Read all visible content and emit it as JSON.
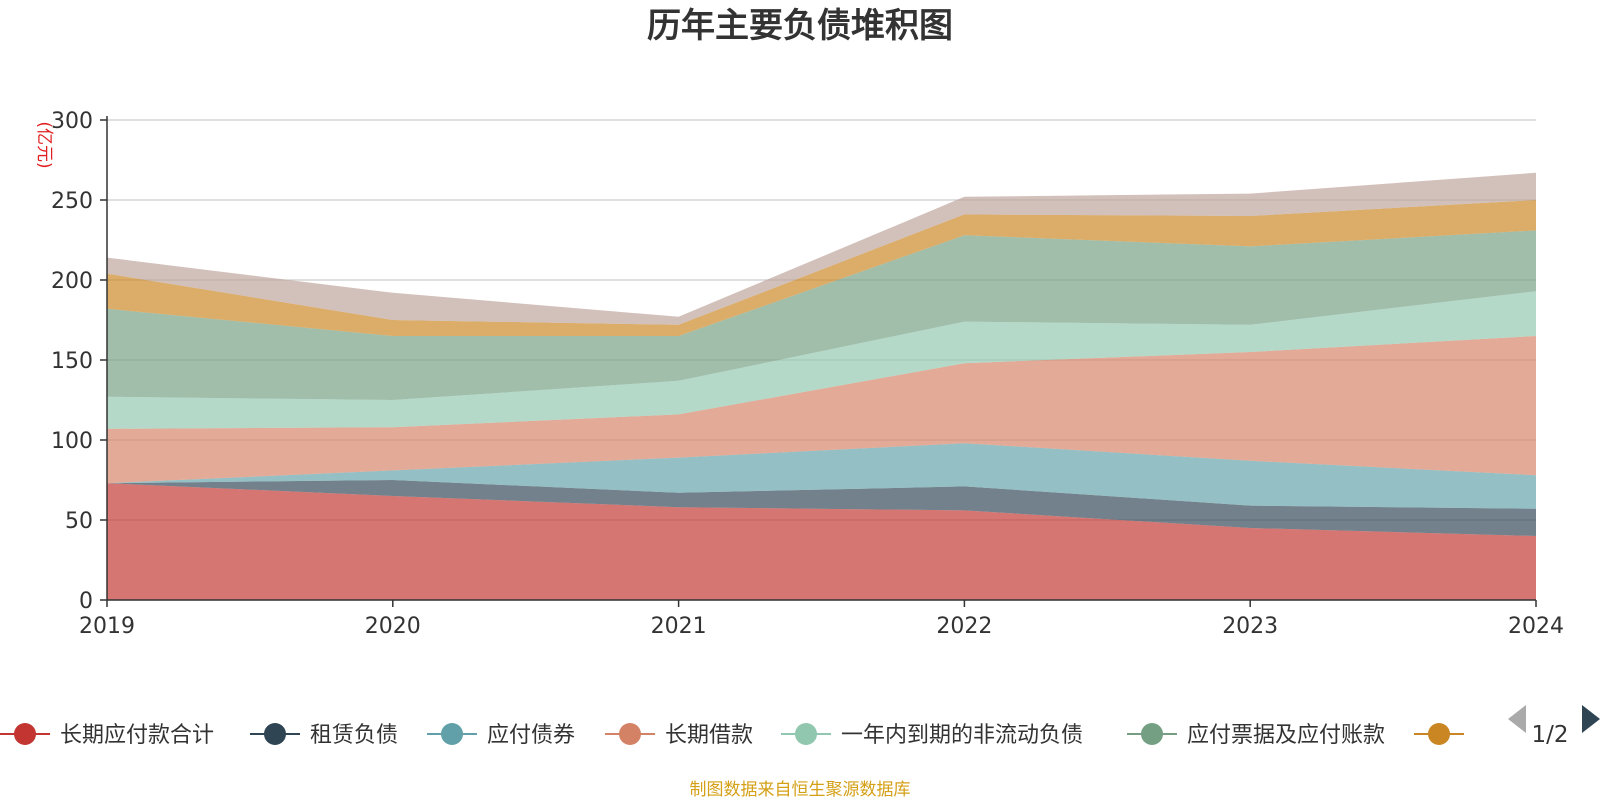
{
  "chart_data": {
    "type": "area",
    "stacked": true,
    "title": "历年主要负债堆积图",
    "unit_label": "(亿元)",
    "x": [
      "2019",
      "2020",
      "2021",
      "2022",
      "2023",
      "2024"
    ],
    "ylim": [
      0,
      300
    ],
    "yticks": [
      "0",
      "50",
      "100",
      "150",
      "200",
      "250",
      "300"
    ],
    "grid": true,
    "series": [
      {
        "name": "长期应付款合计",
        "color": "#c23531",
        "values": [
          73,
          65,
          58,
          56,
          45,
          40
        ]
      },
      {
        "name": "租赁负债",
        "color": "#2f4554",
        "values": [
          0,
          10,
          9,
          15,
          14,
          17
        ]
      },
      {
        "name": "应付债券",
        "color": "#61a0a8",
        "values": [
          0,
          6,
          22,
          27,
          28,
          21
        ]
      },
      {
        "name": "长期借款",
        "color": "#d48265",
        "values": [
          34,
          27,
          27,
          50,
          68,
          87
        ]
      },
      {
        "name": "一年内到期的非流动负债",
        "color": "#91c7ae",
        "values": [
          20,
          17,
          21,
          26,
          17,
          28
        ]
      },
      {
        "name": "应付票据及应付账款",
        "color": "#749f83",
        "values": [
          55,
          40,
          28,
          54,
          49,
          38
        ]
      },
      {
        "name": "",
        "color": "#ca8622",
        "values": [
          22,
          10,
          7,
          13,
          19,
          19
        ]
      },
      {
        "name": "",
        "color": "#bda29a",
        "values": [
          10,
          17,
          5,
          11,
          14,
          17
        ]
      }
    ],
    "legend": {
      "placement": "bottom",
      "visible_count": 7,
      "page": "1/2"
    },
    "source_note": "制图数据来自恒生聚源数据库"
  }
}
